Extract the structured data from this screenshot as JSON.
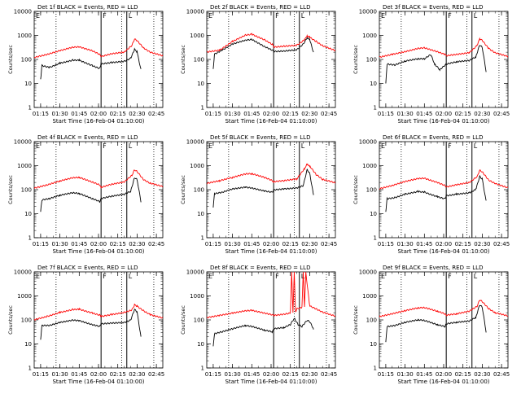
{
  "figure": {
    "xlabel": "Start Time (16-Feb-04 01:10:00)",
    "ylabel": "Counts/sec",
    "x_ticks": [
      "01:15",
      "01:30",
      "01:45",
      "02:00",
      "02:15",
      "02:30",
      "02:45"
    ],
    "y_ticks": [
      "1",
      "10",
      "100",
      "1000",
      "10000"
    ]
  },
  "chart_data": [
    {
      "type": "line",
      "title": "Det 1f BLACK = Events, RED = LLD",
      "ylim": [
        1,
        10000
      ],
      "y_scale": "log",
      "xlim": [
        "01:10",
        "02:50"
      ],
      "dotted_lines_at": [
        "01:27",
        "02:18",
        "02:43"
      ],
      "solid_lines_at": [
        "02:02",
        "02:22"
      ],
      "flag_labels": [
        {
          "text": "E",
          "at": "01:10"
        },
        {
          "text": "F",
          "at": "02:02"
        },
        {
          "text": "L",
          "at": "02:22"
        }
      ],
      "series": [
        {
          "color": "#ff0000",
          "x": [
            "01:10",
            "01:20",
            "01:30",
            "01:40",
            "01:45",
            "01:55",
            "02:01",
            "02:02",
            "02:10",
            "02:20",
            "02:26",
            "02:28",
            "02:30",
            "02:35",
            "02:40",
            "02:50"
          ],
          "y": [
            120,
            160,
            230,
            320,
            330,
            230,
            160,
            130,
            170,
            200,
            380,
            700,
            600,
            300,
            200,
            140
          ]
        },
        {
          "color": "#000000",
          "x": [
            "01:15",
            "01:16",
            "01:22",
            "01:30",
            "01:40",
            "01:45",
            "01:55",
            "02:01",
            "02:02",
            "02:10",
            "02:20",
            "02:25",
            "02:28",
            "02:30",
            "02:33"
          ],
          "y": [
            15,
            60,
            50,
            75,
            100,
            100,
            60,
            45,
            70,
            80,
            90,
            120,
            280,
            220,
            40
          ]
        }
      ]
    },
    {
      "type": "line",
      "title": "Det 2f BLACK = Events, RED = LLD",
      "ylim": [
        1,
        10000
      ],
      "y_scale": "log",
      "xlim": [
        "01:10",
        "02:50"
      ],
      "dotted_lines_at": [
        "01:27",
        "02:18",
        "02:43"
      ],
      "solid_lines_at": [
        "02:02",
        "02:22"
      ],
      "flag_labels": [
        {
          "text": "E",
          "at": "01:10"
        },
        {
          "text": "F",
          "at": "02:02"
        },
        {
          "text": "L",
          "at": "02:22"
        }
      ],
      "series": [
        {
          "color": "#ff0000",
          "x": [
            "01:10",
            "01:20",
            "01:30",
            "01:40",
            "01:45",
            "01:55",
            "02:01",
            "02:02",
            "02:10",
            "02:20",
            "02:26",
            "02:28",
            "02:30",
            "02:35",
            "02:40",
            "02:50"
          ],
          "y": [
            220,
            260,
            600,
            1100,
            1200,
            700,
            450,
            350,
            380,
            420,
            700,
            1000,
            900,
            600,
            400,
            250
          ]
        },
        {
          "color": "#000000",
          "x": [
            "01:15",
            "01:16",
            "01:22",
            "01:30",
            "01:40",
            "01:45",
            "01:55",
            "02:01",
            "02:02",
            "02:10",
            "02:20",
            "02:25",
            "02:28",
            "02:30",
            "02:33"
          ],
          "y": [
            40,
            170,
            250,
            450,
            650,
            700,
            350,
            250,
            220,
            230,
            260,
            450,
            800,
            700,
            200
          ]
        }
      ]
    },
    {
      "type": "line",
      "title": "Det 3f BLACK = Events, RED = LLD",
      "ylim": [
        1,
        10000
      ],
      "y_scale": "log",
      "xlim": [
        "01:10",
        "02:50"
      ],
      "dotted_lines_at": [
        "01:27",
        "02:18",
        "02:43"
      ],
      "solid_lines_at": [
        "02:02",
        "02:22"
      ],
      "flag_labels": [
        {
          "text": "E",
          "at": "01:10"
        },
        {
          "text": "F",
          "at": "02:02"
        },
        {
          "text": "L",
          "at": "02:22"
        }
      ],
      "series": [
        {
          "color": "#ff0000",
          "x": [
            "01:10",
            "01:20",
            "01:30",
            "01:40",
            "01:45",
            "01:55",
            "02:01",
            "02:02",
            "02:10",
            "02:20",
            "02:26",
            "02:28",
            "02:30",
            "02:35",
            "02:40",
            "02:50"
          ],
          "y": [
            130,
            170,
            220,
            300,
            320,
            220,
            170,
            150,
            170,
            200,
            400,
            750,
            650,
            300,
            200,
            140
          ]
        },
        {
          "color": "#000000",
          "x": [
            "01:15",
            "01:16",
            "01:22",
            "01:30",
            "01:40",
            "01:45",
            "01:50",
            "01:53",
            "01:57",
            "02:02",
            "02:10",
            "02:20",
            "02:25",
            "02:28",
            "02:30",
            "02:33"
          ],
          "y": [
            10,
            60,
            55,
            80,
            100,
            100,
            150,
            60,
            35,
            60,
            75,
            85,
            120,
            380,
            300,
            30
          ]
        }
      ]
    },
    {
      "type": "line",
      "title": "Det 4f BLACK = Events, RED = LLD",
      "ylim": [
        1,
        10000
      ],
      "y_scale": "log",
      "xlim": [
        "01:10",
        "02:50"
      ],
      "dotted_lines_at": [
        "01:27",
        "02:18",
        "02:43"
      ],
      "solid_lines_at": [
        "02:02",
        "02:22"
      ],
      "flag_labels": [
        {
          "text": "E",
          "at": "01:10"
        },
        {
          "text": "F",
          "at": "02:02"
        },
        {
          "text": "L",
          "at": "02:22"
        }
      ],
      "series": [
        {
          "color": "#ff0000",
          "x": [
            "01:10",
            "01:20",
            "01:30",
            "01:40",
            "01:45",
            "01:55",
            "02:01",
            "02:02",
            "02:10",
            "02:20",
            "02:26",
            "02:28",
            "02:30",
            "02:35",
            "02:40",
            "02:50"
          ],
          "y": [
            110,
            150,
            220,
            300,
            310,
            200,
            150,
            120,
            160,
            200,
            380,
            650,
            550,
            250,
            180,
            130
          ]
        },
        {
          "color": "#000000",
          "x": [
            "01:15",
            "01:16",
            "01:22",
            "01:30",
            "01:40",
            "01:45",
            "01:55",
            "02:01",
            "02:02",
            "02:10",
            "02:20",
            "02:25",
            "02:28",
            "02:30",
            "02:33"
          ],
          "y": [
            12,
            35,
            40,
            55,
            70,
            65,
            40,
            30,
            40,
            50,
            60,
            80,
            300,
            250,
            30
          ]
        }
      ]
    },
    {
      "type": "line",
      "title": "Det 5f BLACK = Events, RED = LLD",
      "ylim": [
        1,
        10000
      ],
      "y_scale": "log",
      "xlim": [
        "01:10",
        "02:50"
      ],
      "dotted_lines_at": [
        "01:27",
        "02:18",
        "02:43"
      ],
      "solid_lines_at": [
        "02:02",
        "02:22"
      ],
      "flag_labels": [
        {
          "text": "E",
          "at": "01:10"
        },
        {
          "text": "F",
          "at": "02:02"
        },
        {
          "text": "L",
          "at": "02:22"
        }
      ],
      "series": [
        {
          "color": "#ff0000",
          "x": [
            "01:10",
            "01:20",
            "01:30",
            "01:40",
            "01:45",
            "01:55",
            "02:01",
            "02:02",
            "02:10",
            "02:20",
            "02:26",
            "02:28",
            "02:30",
            "02:35",
            "02:40",
            "02:50"
          ],
          "y": [
            170,
            220,
            300,
            420,
            430,
            300,
            220,
            200,
            220,
            260,
            700,
            1100,
            900,
            400,
            250,
            180
          ]
        },
        {
          "color": "#000000",
          "x": [
            "01:15",
            "01:16",
            "01:22",
            "01:30",
            "01:40",
            "01:45",
            "01:55",
            "02:01",
            "02:02",
            "02:10",
            "02:20",
            "02:25",
            "02:28",
            "02:30",
            "02:33"
          ],
          "y": [
            18,
            70,
            80,
            110,
            130,
            120,
            90,
            80,
            100,
            110,
            120,
            150,
            700,
            500,
            60
          ]
        }
      ]
    },
    {
      "type": "line",
      "title": "Det 6f BLACK = Events, RED = LLD",
      "ylim": [
        1,
        10000
      ],
      "y_scale": "log",
      "xlim": [
        "01:10",
        "02:50"
      ],
      "dotted_lines_at": [
        "01:27",
        "02:18",
        "02:43"
      ],
      "solid_lines_at": [
        "02:02",
        "02:22"
      ],
      "flag_labels": [
        {
          "text": "E",
          "at": "01:10"
        },
        {
          "text": "F",
          "at": "02:02"
        },
        {
          "text": "L",
          "at": "02:22"
        }
      ],
      "series": [
        {
          "color": "#ff0000",
          "x": [
            "01:10",
            "01:20",
            "01:30",
            "01:40",
            "01:45",
            "01:55",
            "02:01",
            "02:02",
            "02:10",
            "02:20",
            "02:26",
            "02:28",
            "02:30",
            "02:35",
            "02:40",
            "02:50"
          ],
          "y": [
            110,
            150,
            220,
            290,
            300,
            200,
            150,
            130,
            160,
            200,
            350,
            650,
            550,
            250,
            180,
            120
          ]
        },
        {
          "color": "#000000",
          "x": [
            "01:15",
            "01:16",
            "01:22",
            "01:30",
            "01:40",
            "01:45",
            "01:55",
            "02:01",
            "02:02",
            "02:10",
            "02:20",
            "02:25",
            "02:28",
            "02:30",
            "02:33"
          ],
          "y": [
            12,
            45,
            50,
            70,
            90,
            85,
            55,
            45,
            60,
            70,
            80,
            110,
            380,
            300,
            35
          ]
        }
      ]
    },
    {
      "type": "line",
      "title": "Det 7f BLACK = Events, RED = LLD",
      "ylim": [
        1,
        10000
      ],
      "y_scale": "log",
      "xlim": [
        "01:10",
        "02:50"
      ],
      "dotted_lines_at": [
        "01:27",
        "02:18",
        "02:43"
      ],
      "solid_lines_at": [
        "02:02",
        "02:22"
      ],
      "flag_labels": [
        {
          "text": "E",
          "at": "01:10"
        },
        {
          "text": "F",
          "at": "02:02"
        },
        {
          "text": "L",
          "at": "02:22"
        }
      ],
      "series": [
        {
          "color": "#ff0000",
          "x": [
            "01:10",
            "01:20",
            "01:30",
            "01:40",
            "01:45",
            "01:55",
            "02:01",
            "02:02",
            "02:10",
            "02:20",
            "02:26",
            "02:28",
            "02:30",
            "02:35",
            "02:40",
            "02:50"
          ],
          "y": [
            110,
            150,
            220,
            290,
            300,
            210,
            170,
            150,
            180,
            220,
            280,
            450,
            400,
            260,
            180,
            130
          ]
        },
        {
          "color": "#000000",
          "x": [
            "01:15",
            "01:16",
            "01:22",
            "01:30",
            "01:40",
            "01:45",
            "01:55",
            "02:01",
            "02:02",
            "02:10",
            "02:20",
            "02:25",
            "02:28",
            "02:30",
            "02:33"
          ],
          "y": [
            15,
            60,
            60,
            80,
            100,
            95,
            65,
            55,
            70,
            75,
            80,
            100,
            280,
            220,
            20
          ]
        }
      ]
    },
    {
      "type": "line",
      "title": "Det 8f BLACK = Events, RED = LLD",
      "ylim": [
        1,
        10000
      ],
      "y_scale": "log",
      "xlim": [
        "01:10",
        "02:50"
      ],
      "dotted_lines_at": [
        "01:27",
        "02:18",
        "02:43"
      ],
      "solid_lines_at": [
        "02:02",
        "02:22"
      ],
      "flag_labels": [
        {
          "text": "E",
          "at": "01:10"
        },
        {
          "text": "F",
          "at": "02:02"
        },
        {
          "text": "L",
          "at": "02:22"
        }
      ],
      "series": [
        {
          "color": "#ff0000",
          "x": [
            "01:10",
            "01:20",
            "01:30",
            "01:40",
            "01:45",
            "01:55",
            "02:01",
            "02:02",
            "02:10",
            "02:15",
            "02:16",
            "02:17",
            "02:18",
            "02:19",
            "02:20",
            "02:24",
            "02:25",
            "02:26",
            "02:27",
            "02:30",
            "02:35",
            "02:40",
            "02:50"
          ],
          "y": [
            130,
            160,
            200,
            250,
            260,
            200,
            170,
            160,
            180,
            200,
            10000,
            200,
            10000,
            220,
            300,
            350,
            10000,
            350,
            10000,
            400,
            300,
            220,
            150
          ]
        },
        {
          "color": "#000000",
          "x": [
            "01:15",
            "01:16",
            "01:22",
            "01:30",
            "01:40",
            "01:45",
            "01:55",
            "02:01",
            "02:02",
            "02:10",
            "02:15",
            "02:18",
            "02:21",
            "02:24",
            "02:28",
            "02:30",
            "02:33"
          ],
          "y": [
            8,
            25,
            30,
            40,
            55,
            50,
            35,
            30,
            40,
            45,
            60,
            110,
            60,
            50,
            90,
            80,
            40
          ]
        }
      ]
    },
    {
      "type": "line",
      "title": "Det 9f BLACK = Events, RED = LLD",
      "ylim": [
        1,
        10000
      ],
      "y_scale": "log",
      "xlim": [
        "01:10",
        "02:50"
      ],
      "dotted_lines_at": [
        "01:27",
        "02:18",
        "02:43"
      ],
      "solid_lines_at": [
        "02:02",
        "02:22"
      ],
      "flag_labels": [
        {
          "text": "E",
          "at": "01:10"
        },
        {
          "text": "F",
          "at": "02:02"
        },
        {
          "text": "L",
          "at": "02:22"
        }
      ],
      "series": [
        {
          "color": "#ff0000",
          "x": [
            "01:10",
            "01:20",
            "01:30",
            "01:40",
            "01:45",
            "01:55",
            "02:01",
            "02:02",
            "02:10",
            "02:20",
            "02:26",
            "02:28",
            "02:30",
            "02:35",
            "02:40",
            "02:50"
          ],
          "y": [
            130,
            170,
            230,
            300,
            310,
            220,
            170,
            150,
            170,
            220,
            350,
            650,
            550,
            280,
            190,
            140
          ]
        },
        {
          "color": "#000000",
          "x": [
            "01:15",
            "01:16",
            "01:22",
            "01:30",
            "01:40",
            "01:45",
            "01:55",
            "02:01",
            "02:02",
            "02:10",
            "02:20",
            "02:25",
            "02:28",
            "02:30",
            "02:33"
          ],
          "y": [
            12,
            50,
            55,
            75,
            95,
            90,
            60,
            50,
            65,
            75,
            85,
            120,
            400,
            320,
            30
          ]
        }
      ]
    }
  ]
}
